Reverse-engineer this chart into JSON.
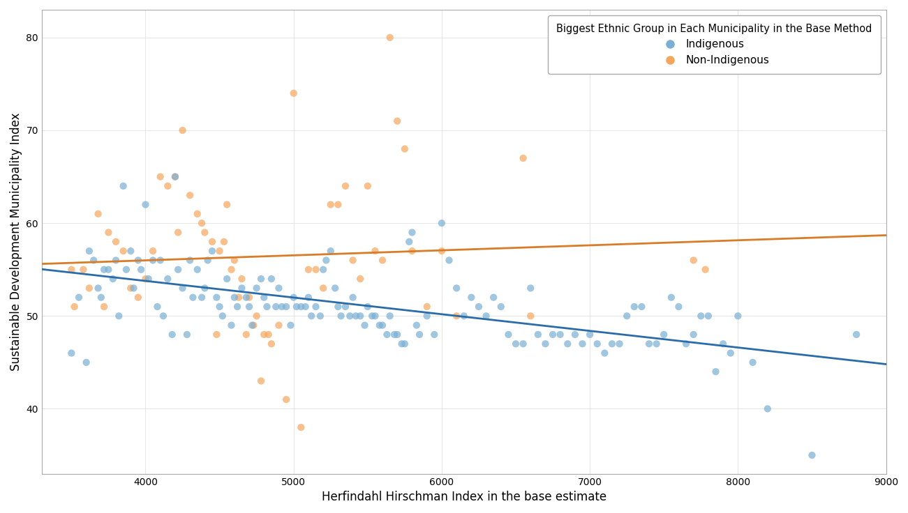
{
  "xlabel": "Herfindahl Hirschman Index in the base estimate",
  "ylabel": "Sustainable Development Municipality Index",
  "legend_title": "Biggest Ethnic Group in Each Municipality in the Base Method",
  "xlim": [
    3300,
    9000
  ],
  "ylim": [
    33,
    83
  ],
  "xticks": [
    4000,
    5000,
    6000,
    7000,
    8000,
    9000
  ],
  "yticks": [
    40,
    50,
    60,
    70,
    80
  ],
  "indigenous_color": "#7aafd4",
  "non_indigenous_color": "#f5a65b",
  "line_indigenous_color": "#2b6ca8",
  "line_non_indigenous_color": "#d97c28",
  "alpha": 0.7,
  "marker_size": 55,
  "background_color": "#ffffff",
  "grid_color": "#e0e0e0",
  "indigenous_x": [
    3500,
    3550,
    3600,
    3620,
    3650,
    3680,
    3700,
    3720,
    3750,
    3780,
    3800,
    3820,
    3850,
    3870,
    3900,
    3920,
    3950,
    3970,
    4000,
    4020,
    4050,
    4080,
    4100,
    4120,
    4150,
    4180,
    4200,
    4220,
    4250,
    4280,
    4300,
    4320,
    4350,
    4380,
    4400,
    4420,
    4450,
    4480,
    4500,
    4520,
    4550,
    4580,
    4600,
    4620,
    4650,
    4680,
    4700,
    4720,
    4750,
    4780,
    4800,
    4820,
    4850,
    4880,
    4900,
    4920,
    4950,
    4980,
    5000,
    5020,
    5050,
    5080,
    5100,
    5120,
    5150,
    5180,
    5200,
    5220,
    5250,
    5280,
    5300,
    5320,
    5350,
    5380,
    5400,
    5420,
    5450,
    5480,
    5500,
    5530,
    5550,
    5580,
    5600,
    5630,
    5650,
    5680,
    5700,
    5730,
    5750,
    5780,
    5800,
    5830,
    5850,
    5900,
    5950,
    6000,
    6050,
    6100,
    6150,
    6200,
    6250,
    6300,
    6350,
    6400,
    6450,
    6500,
    6550,
    6600,
    6650,
    6700,
    6750,
    6800,
    6850,
    6900,
    6950,
    7000,
    7050,
    7100,
    7150,
    7200,
    7250,
    7300,
    7350,
    7400,
    7450,
    7500,
    7550,
    7600,
    7650,
    7700,
    7750,
    7800,
    7850,
    7900,
    7950,
    8000,
    8100,
    8200,
    8500,
    8800
  ],
  "indigenous_y": [
    46,
    52,
    45,
    57,
    56,
    53,
    52,
    55,
    55,
    54,
    56,
    50,
    64,
    55,
    57,
    53,
    56,
    55,
    62,
    54,
    56,
    51,
    56,
    50,
    54,
    48,
    65,
    55,
    53,
    48,
    56,
    52,
    55,
    52,
    53,
    56,
    57,
    52,
    51,
    50,
    54,
    49,
    52,
    51,
    53,
    52,
    51,
    49,
    53,
    54,
    52,
    51,
    54,
    51,
    53,
    51,
    51,
    49,
    52,
    51,
    51,
    51,
    52,
    50,
    51,
    50,
    55,
    56,
    57,
    53,
    51,
    50,
    51,
    50,
    52,
    50,
    50,
    49,
    51,
    50,
    50,
    49,
    49,
    48,
    50,
    48,
    48,
    47,
    47,
    58,
    59,
    49,
    48,
    50,
    48,
    60,
    56,
    53,
    50,
    52,
    51,
    50,
    52,
    51,
    48,
    47,
    47,
    53,
    48,
    47,
    48,
    48,
    47,
    48,
    47,
    48,
    47,
    46,
    47,
    47,
    50,
    51,
    51,
    47,
    47,
    48,
    52,
    51,
    47,
    48,
    50,
    50,
    44,
    47,
    46,
    50,
    45,
    40,
    35,
    48
  ],
  "non_indigenous_x": [
    3500,
    3520,
    3580,
    3620,
    3680,
    3720,
    3750,
    3800,
    3850,
    3900,
    3950,
    4000,
    4050,
    4100,
    4150,
    4200,
    4220,
    4250,
    4300,
    4350,
    4380,
    4400,
    4450,
    4480,
    4500,
    4530,
    4550,
    4580,
    4600,
    4630,
    4650,
    4680,
    4700,
    4730,
    4750,
    4780,
    4800,
    4830,
    4850,
    4900,
    4950,
    5000,
    5050,
    5100,
    5150,
    5200,
    5250,
    5300,
    5350,
    5400,
    5450,
    5500,
    5550,
    5600,
    5650,
    5700,
    5750,
    5800,
    5900,
    6000,
    6100,
    6550,
    6600,
    7700,
    7780
  ],
  "non_indigenous_y": [
    55,
    51,
    55,
    53,
    61,
    51,
    59,
    58,
    57,
    53,
    52,
    54,
    57,
    65,
    64,
    65,
    59,
    70,
    63,
    61,
    60,
    59,
    58,
    48,
    57,
    58,
    62,
    55,
    56,
    52,
    54,
    48,
    52,
    49,
    50,
    43,
    48,
    48,
    47,
    49,
    41,
    74,
    38,
    55,
    55,
    53,
    62,
    62,
    64,
    56,
    54,
    64,
    57,
    56,
    80,
    71,
    68,
    57,
    51,
    57,
    50,
    67,
    50,
    56,
    55
  ],
  "figsize": [
    13.01,
    7.36
  ],
  "dpi": 100
}
